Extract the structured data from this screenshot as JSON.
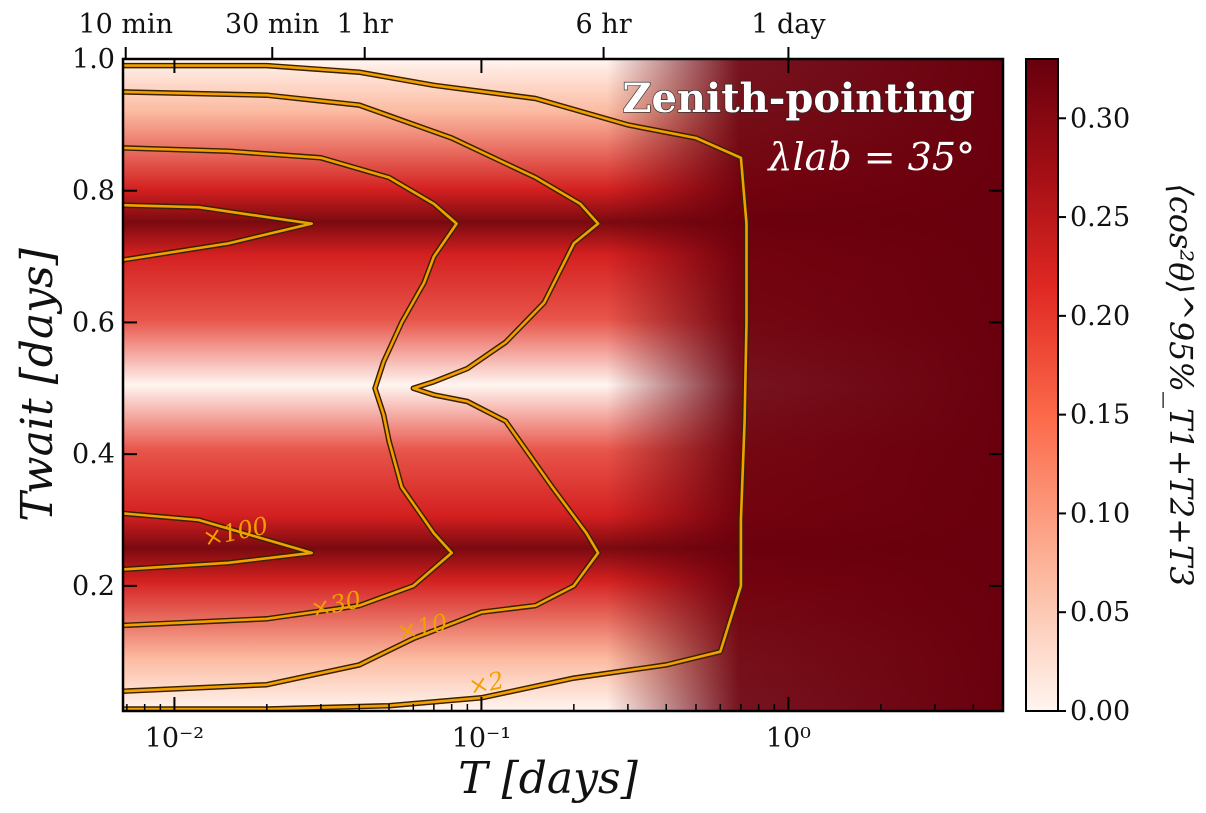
{
  "chart_data": {
    "type": "heatmap",
    "title": "Zenith-pointing",
    "subtitle": "λlab = 35°",
    "xlabel": "T [days]",
    "ylabel": "Twait [days]",
    "colorbar_label": "⟨cos²θ⟩^95%_T1+T2+T3",
    "xscale": "log",
    "xlim": [
      0.0068,
      5.0
    ],
    "ylim": [
      0.01,
      1.0
    ],
    "x_ticks": [
      {
        "value": 0.01,
        "label": "10⁻²"
      },
      {
        "value": 0.1,
        "label": "10⁻¹"
      },
      {
        "value": 1,
        "label": "10⁰"
      }
    ],
    "y_ticks": [
      {
        "value": 0.2,
        "label": "0.2"
      },
      {
        "value": 0.4,
        "label": "0.4"
      },
      {
        "value": 0.6,
        "label": "0.6"
      },
      {
        "value": 0.8,
        "label": "0.8"
      },
      {
        "value": 1.0,
        "label": "1.0"
      }
    ],
    "top_ticks": [
      {
        "value": 0.00694,
        "label": "10 min"
      },
      {
        "value": 0.02083,
        "label": "30 min"
      },
      {
        "value": 0.04167,
        "label": "1 hr"
      },
      {
        "value": 0.25,
        "label": "6 hr"
      },
      {
        "value": 1.0,
        "label": "1 day"
      }
    ],
    "colorbar": {
      "range": [
        0.0,
        0.33
      ],
      "ticks": [
        "0.00",
        "0.05",
        "0.10",
        "0.15",
        "0.20",
        "0.25",
        "0.30"
      ],
      "colors": [
        "#fff5f0",
        "#fcbba1",
        "#fc6a4a",
        "#e02823",
        "#a50f15",
        "#67000d"
      ]
    },
    "contour_color": "#f2a000",
    "contours": [
      {
        "label": "×2",
        "label_at": [
          0.105,
          0.04
        ],
        "points": [
          [
            0.0068,
            0.013
          ],
          [
            0.02,
            0.013
          ],
          [
            0.05,
            0.018
          ],
          [
            0.1,
            0.03
          ],
          [
            0.2,
            0.06
          ],
          [
            0.4,
            0.08
          ],
          [
            0.6,
            0.1
          ],
          [
            0.7,
            0.2
          ],
          [
            0.7,
            0.3
          ],
          [
            0.72,
            0.45
          ],
          [
            0.73,
            0.6
          ],
          [
            0.73,
            0.75
          ],
          [
            0.7,
            0.85
          ],
          [
            0.5,
            0.88
          ],
          [
            0.3,
            0.9
          ],
          [
            0.15,
            0.94
          ],
          [
            0.07,
            0.96
          ],
          [
            0.04,
            0.98
          ],
          [
            0.02,
            0.99
          ],
          [
            0.0068,
            0.99
          ]
        ]
      },
      {
        "label": "×10",
        "label_at": [
          0.065,
          0.125
        ],
        "points": [
          [
            0.0068,
            0.04
          ],
          [
            0.02,
            0.05
          ],
          [
            0.04,
            0.08
          ],
          [
            0.06,
            0.12
          ],
          [
            0.1,
            0.16
          ],
          [
            0.15,
            0.17
          ],
          [
            0.2,
            0.2
          ],
          [
            0.24,
            0.25
          ],
          [
            0.22,
            0.28
          ],
          [
            0.17,
            0.35
          ],
          [
            0.12,
            0.45
          ],
          [
            0.09,
            0.48
          ],
          [
            0.07,
            0.49
          ],
          [
            0.06,
            0.5
          ],
          [
            0.07,
            0.51
          ],
          [
            0.09,
            0.53
          ],
          [
            0.12,
            0.57
          ],
          [
            0.16,
            0.63
          ],
          [
            0.2,
            0.72
          ],
          [
            0.24,
            0.75
          ],
          [
            0.21,
            0.78
          ],
          [
            0.15,
            0.82
          ],
          [
            0.08,
            0.88
          ],
          [
            0.04,
            0.93
          ],
          [
            0.02,
            0.945
          ],
          [
            0.0068,
            0.95
          ]
        ]
      },
      {
        "label": "×30",
        "label_at": [
          0.034,
          0.16
        ],
        "points": [
          [
            0.0068,
            0.14
          ],
          [
            0.02,
            0.15
          ],
          [
            0.04,
            0.17
          ],
          [
            0.06,
            0.2
          ],
          [
            0.08,
            0.25
          ],
          [
            0.07,
            0.28
          ],
          [
            0.055,
            0.35
          ],
          [
            0.05,
            0.42
          ],
          [
            0.048,
            0.46
          ],
          [
            0.045,
            0.5
          ],
          [
            0.048,
            0.54
          ],
          [
            0.055,
            0.6
          ],
          [
            0.065,
            0.66
          ],
          [
            0.07,
            0.7
          ],
          [
            0.083,
            0.75
          ],
          [
            0.07,
            0.78
          ],
          [
            0.05,
            0.82
          ],
          [
            0.03,
            0.85
          ],
          [
            0.015,
            0.86
          ],
          [
            0.0068,
            0.865
          ]
        ]
      },
      {
        "label": "×100",
        "label_at": [
          0.016,
          0.27
        ],
        "points": [
          [
            0.0068,
            0.225
          ],
          [
            0.015,
            0.235
          ],
          [
            0.028,
            0.25
          ],
          [
            0.02,
            0.27
          ],
          [
            0.012,
            0.3
          ],
          [
            0.0068,
            0.31
          ]
        ]
      },
      {
        "label": "",
        "label_at": null,
        "points": [
          [
            0.0068,
            0.695
          ],
          [
            0.015,
            0.72
          ],
          [
            0.028,
            0.75
          ],
          [
            0.02,
            0.76
          ],
          [
            0.012,
            0.775
          ],
          [
            0.0068,
            0.778
          ]
        ]
      }
    ]
  }
}
